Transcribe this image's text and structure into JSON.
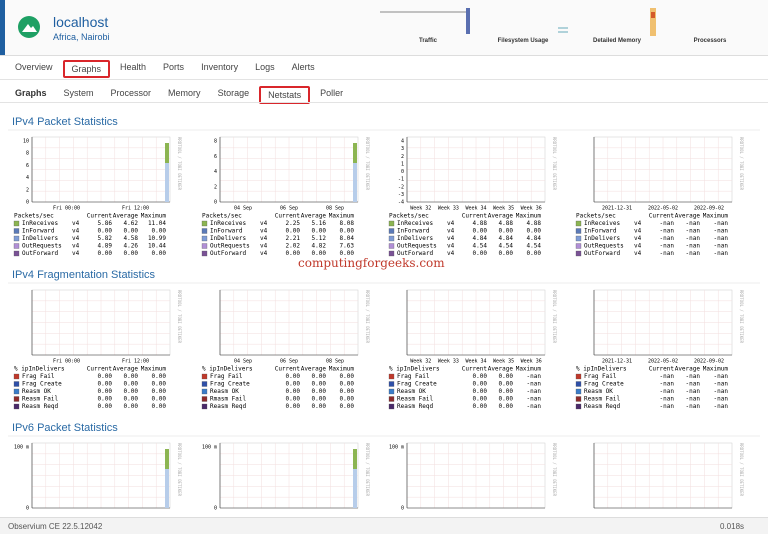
{
  "header": {
    "host": "localhost",
    "location": "Africa, Nairobi",
    "minigraphs": [
      "Traffic",
      "Filesystem Usage",
      "Detailed Memory",
      "Processors"
    ]
  },
  "nav": [
    "Overview",
    "Graphs",
    "Health",
    "Ports",
    "Inventory",
    "Logs",
    "Alerts"
  ],
  "subnav": [
    "Graphs",
    "System",
    "Processor",
    "Memory",
    "Storage",
    "Netstats",
    "Poller"
  ],
  "rrdtool": "RRDTOOL / TOBI OETIKER",
  "watermark": "computingforgeeks.com",
  "sections": [
    {
      "title": "IPv4 Packet Statistics",
      "colors": [
        "#8cb552",
        "#5b7ab8",
        "#7f9cd6",
        "#b18fd6",
        "#7a5296"
      ],
      "panels": [
        {
          "yticks": [
            "10",
            "8",
            "6",
            "4",
            "2",
            "0"
          ],
          "xticks": [
            "Fri 00:00",
            "Fri 12:00"
          ],
          "legend": {
            "header": [
              "Packets/sec",
              "Current",
              "Average",
              "Maximum"
            ],
            "rows": [
              [
                "InReceives",
                "v4",
                "5.86",
                "4.62",
                "11.04"
              ],
              [
                "InForward",
                "v4",
                "0.00",
                "0.00",
                "0.00"
              ],
              [
                "InDelivers",
                "v4",
                "5.82",
                "4.58",
                "10.99"
              ],
              [
                "OutRequests",
                "v4",
                "4.89",
                "4.26",
                "10.44"
              ],
              [
                "OutForward",
                "v4",
                "0.00",
                "0.00",
                "0.00"
              ]
            ]
          }
        },
        {
          "yticks": [
            "8",
            "6",
            "4",
            "2",
            "0"
          ],
          "xticks": [
            "04 Sep",
            "06 Sep",
            "08 Sep"
          ],
          "legend": {
            "header": [
              "Packets/sec",
              "Current",
              "Average",
              "Maximum"
            ],
            "rows": [
              [
                "InReceives",
                "v4",
                "2.25",
                "5.16",
                "8.08"
              ],
              [
                "InForward",
                "v4",
                "0.00",
                "0.00",
                "0.00"
              ],
              [
                "InDelivers",
                "v4",
                "2.21",
                "5.12",
                "8.04"
              ],
              [
                "OutRequests",
                "v4",
                "2.02",
                "4.82",
                "7.63"
              ],
              [
                "OutForward",
                "v4",
                "0.00",
                "0.00",
                "0.00"
              ]
            ]
          }
        },
        {
          "yticks": [
            "4",
            "3",
            "2",
            "1",
            "0",
            "-1",
            "-2",
            "-3",
            "-4"
          ],
          "xticks": [
            "Week 32",
            "Week 33",
            "Week 34",
            "Week 35",
            "Week 36"
          ],
          "legend": {
            "header": [
              "Packets/sec",
              "Current",
              "Average",
              "Maximum"
            ],
            "rows": [
              [
                "InReceives",
                "v4",
                "4.88",
                "4.88",
                "4.88"
              ],
              [
                "InForward",
                "v4",
                "0.00",
                "0.00",
                "0.00"
              ],
              [
                "InDelivers",
                "v4",
                "4.84",
                "4.84",
                "4.84"
              ],
              [
                "OutRequests",
                "v4",
                "4.54",
                "4.54",
                "4.54"
              ],
              [
                "OutForward",
                "v4",
                "0.00",
                "0.00",
                "0.00"
              ]
            ]
          }
        },
        {
          "yticks": [],
          "xticks": [
            "2021-12-31",
            "2022-05-02",
            "2022-09-02"
          ],
          "legend": {
            "header": [
              "Packets/sec",
              "Current",
              "Average",
              "Maximum"
            ],
            "rows": [
              [
                "InReceives",
                "v4",
                "-nan",
                "-nan",
                "-nan"
              ],
              [
                "InForward",
                "v4",
                "-nan",
                "-nan",
                "-nan"
              ],
              [
                "InDelivers",
                "v4",
                "-nan",
                "-nan",
                "-nan"
              ],
              [
                "OutRequests",
                "v4",
                "-nan",
                "-nan",
                "-nan"
              ],
              [
                "OutForward",
                "v4",
                "-nan",
                "-nan",
                "-nan"
              ]
            ]
          }
        }
      ]
    },
    {
      "title": "IPv4 Fragmentation Statistics",
      "colors": [
        "#c0392b",
        "#2e4fa8",
        "#3a7dc9",
        "#8e2b2b",
        "#4a2a6a"
      ],
      "panels": [
        {
          "yticks": [],
          "xticks": [
            "Fri 00:00",
            "Fri 12:00"
          ],
          "legend": {
            "header": [
              "% ipInDelivers",
              "Current",
              "Average",
              "Maximum"
            ],
            "rows": [
              [
                "Frag Fail",
                "0.00",
                "0.00",
                "0.00"
              ],
              [
                "Frag Create",
                "0.00",
                "0.00",
                "0.00"
              ],
              [
                "Reasm OK",
                "0.00",
                "0.00",
                "0.00"
              ],
              [
                "Reasm Fail",
                "0.00",
                "0.00",
                "0.00"
              ],
              [
                "Reasm Reqd",
                "0.00",
                "0.00",
                "0.00"
              ]
            ]
          }
        },
        {
          "yticks": [],
          "xticks": [
            "04 Sep",
            "06 Sep",
            "08 Sep"
          ],
          "legend": {
            "header": [
              "% ipInDelivers",
              "Current",
              "Average",
              "Maximum"
            ],
            "rows": [
              [
                "Frag Fail",
                "0.00",
                "0.00",
                "0.00"
              ],
              [
                "Frag Create",
                "0.00",
                "0.00",
                "0.00"
              ],
              [
                "Reasm OK",
                "0.00",
                "0.00",
                "0.00"
              ],
              [
                "Rmasm Fail",
                "0.00",
                "0.00",
                "0.00"
              ],
              [
                "Reasm Reqd",
                "0.00",
                "0.00",
                "0.00"
              ]
            ]
          }
        },
        {
          "yticks": [],
          "xticks": [
            "Week 32",
            "Week 33",
            "Week 34",
            "Week 35",
            "Week 36"
          ],
          "legend": {
            "header": [
              "% ipInDelivers",
              "Current",
              "Average",
              "Maximum"
            ],
            "rows": [
              [
                "Frag Fail",
                "0.00",
                "0.00",
                "-nan"
              ],
              [
                "Frag Create",
                "0.00",
                "0.00",
                "-nan"
              ],
              [
                "Reasm OK",
                "0.00",
                "0.00",
                "-nan"
              ],
              [
                "Reasm Fail",
                "0.00",
                "0.00",
                "-nan"
              ],
              [
                "Reasm Reqd",
                "0.00",
                "0.00",
                "-nan"
              ]
            ]
          }
        },
        {
          "yticks": [],
          "xticks": [
            "2021-12-31",
            "2022-05-02",
            "2022-09-02"
          ],
          "legend": {
            "header": [
              "% ipInDelivers",
              "Current",
              "Average",
              "Maximum"
            ],
            "rows": [
              [
                "Frag Fail",
                "-nan",
                "-nan",
                "-nan"
              ],
              [
                "Frag Create",
                "-nan",
                "-nan",
                "-nan"
              ],
              [
                "Reasm OK",
                "-nan",
                "-nan",
                "-nan"
              ],
              [
                "Reasm Fail",
                "-nan",
                "-nan",
                "-nan"
              ],
              [
                "Reasm Reqd",
                "-nan",
                "-nan",
                "-nan"
              ]
            ]
          }
        }
      ]
    },
    {
      "title": "IPv6 Packet Statistics",
      "colors": [],
      "panels": [
        {
          "yticks": [
            "100 m",
            "0"
          ],
          "xticks": [],
          "legend": null
        },
        {
          "yticks": [
            "100 m",
            "0"
          ],
          "xticks": [],
          "legend": null
        },
        {
          "yticks": [
            "100 m",
            "0"
          ],
          "xticks": [],
          "legend": null
        },
        {
          "yticks": [],
          "xticks": [],
          "legend": null
        }
      ]
    }
  ],
  "footer": {
    "version": "Observium CE 22.5.12042",
    "time": "0.018s"
  }
}
